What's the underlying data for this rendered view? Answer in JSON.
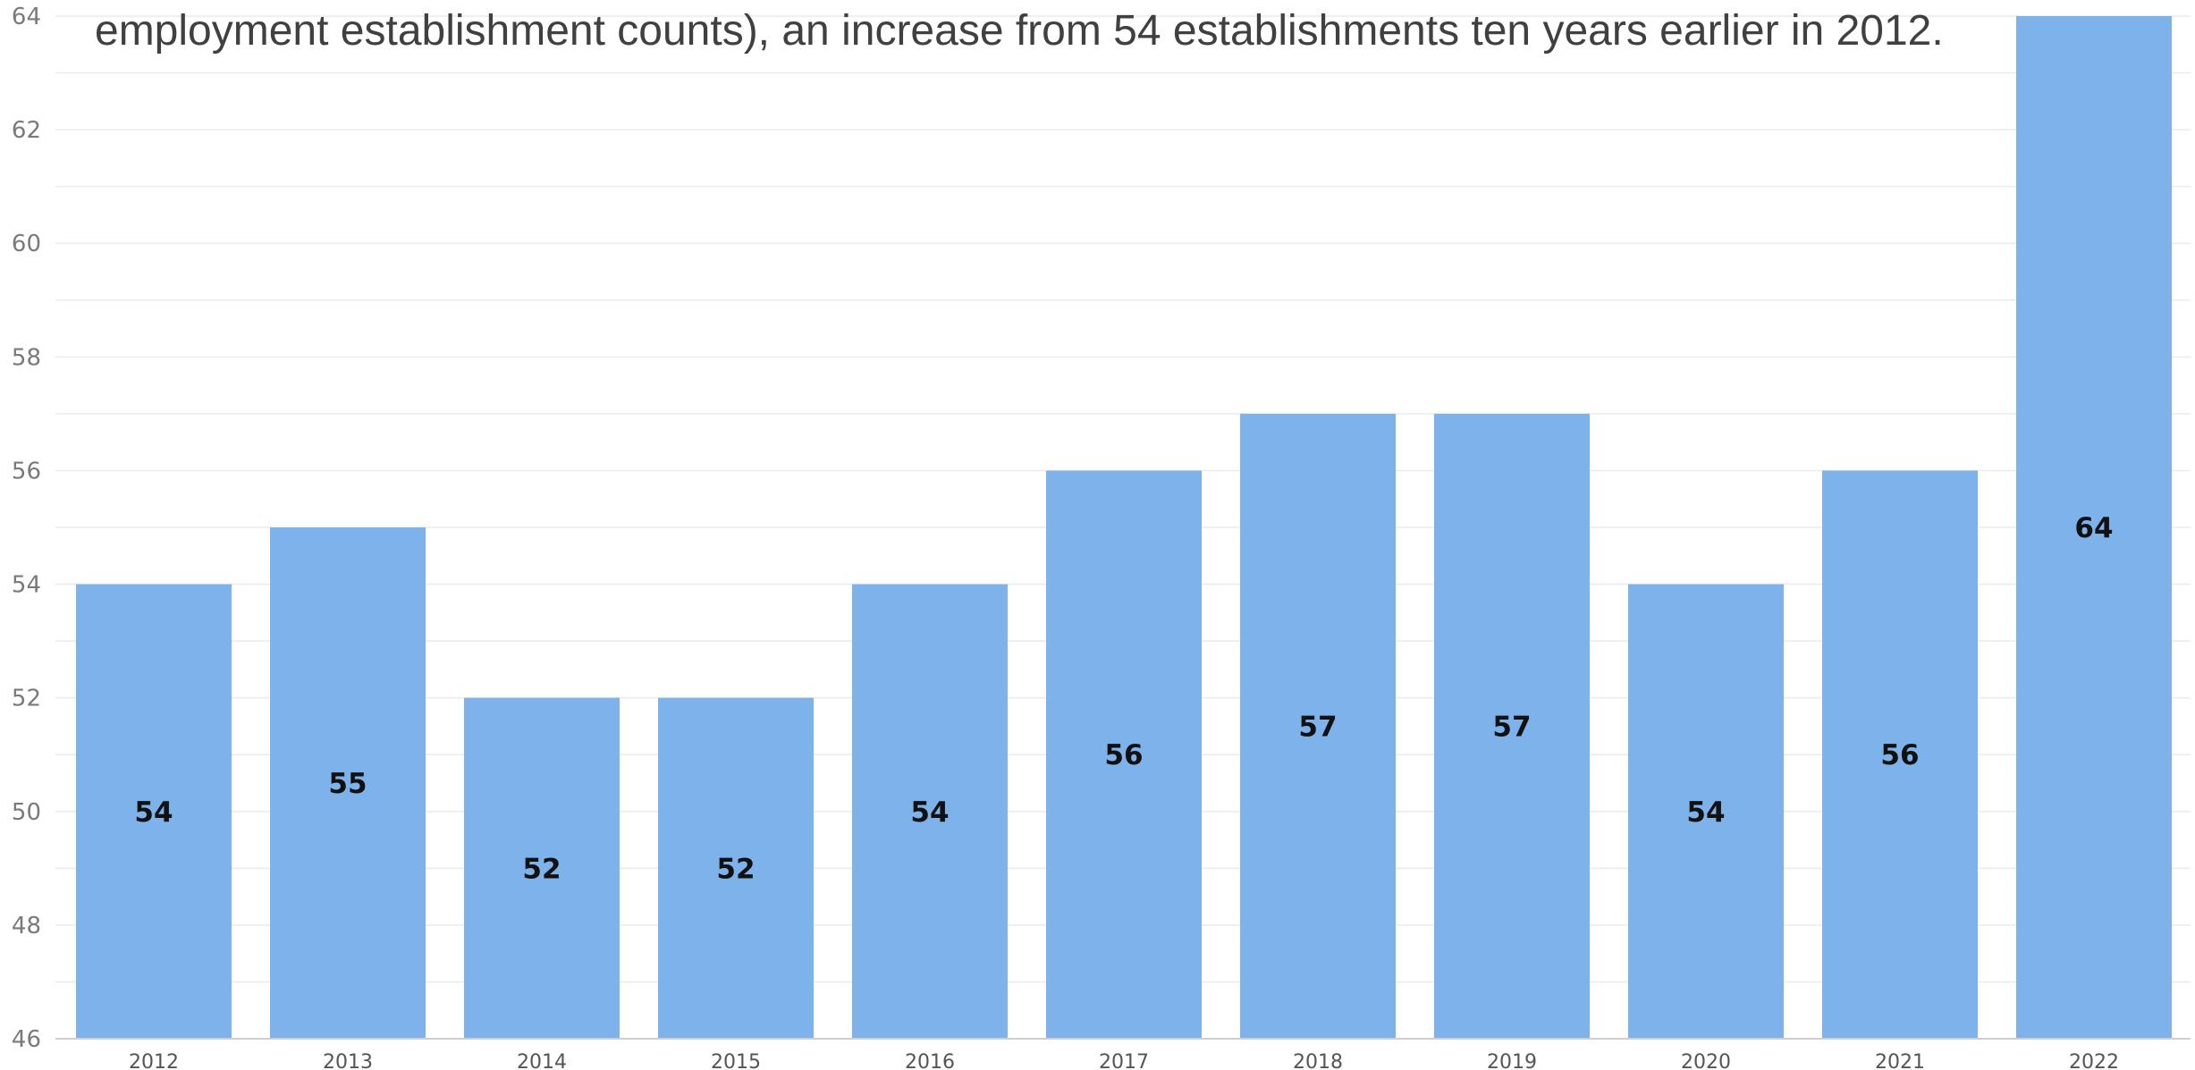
{
  "caption": "employment establishment counts), an increase from 54 establishments ten years earlier in 2012.",
  "chart_data": {
    "type": "bar",
    "title": "",
    "xlabel": "",
    "ylabel": "",
    "categories": [
      "2012",
      "2013",
      "2014",
      "2015",
      "2016",
      "2017",
      "2018",
      "2019",
      "2020",
      "2021",
      "2022"
    ],
    "values": [
      54,
      55,
      52,
      52,
      54,
      56,
      57,
      57,
      54,
      56,
      64
    ],
    "data_labels": [
      "54",
      "55",
      "52",
      "52",
      "54",
      "56",
      "57",
      "57",
      "54",
      "56",
      "64"
    ],
    "ylim": [
      46,
      64
    ],
    "yticks": [
      46,
      48,
      50,
      52,
      54,
      56,
      58,
      60,
      62,
      64
    ],
    "y_tick_labels": [
      "46",
      "48",
      "50",
      "52",
      "54",
      "56",
      "58",
      "60",
      "62",
      "64"
    ],
    "grid": true,
    "legend": "none",
    "bar_color": "#7db3ea",
    "grid_color": "#ebebeb",
    "axis_color": "#cfcfcf"
  }
}
